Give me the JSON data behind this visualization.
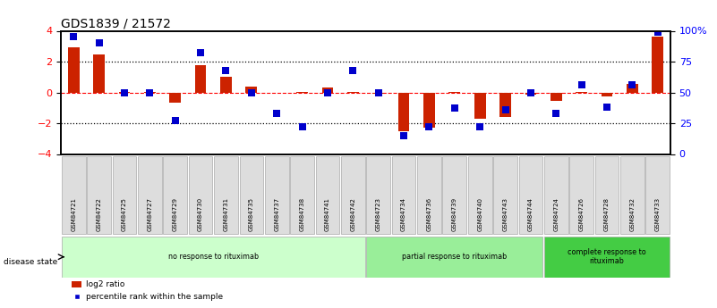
{
  "title": "GDS1839 / 21572",
  "samples": [
    "GSM84721",
    "GSM84722",
    "GSM84725",
    "GSM84727",
    "GSM84729",
    "GSM84730",
    "GSM84731",
    "GSM84735",
    "GSM84737",
    "GSM84738",
    "GSM84741",
    "GSM84742",
    "GSM84723",
    "GSM84734",
    "GSM84736",
    "GSM84739",
    "GSM84740",
    "GSM84743",
    "GSM84744",
    "GSM84724",
    "GSM84726",
    "GSM84728",
    "GSM84732",
    "GSM84733"
  ],
  "log2_ratio": [
    2.9,
    2.45,
    0.05,
    0.02,
    -0.65,
    1.75,
    1.0,
    0.4,
    -0.05,
    0.02,
    0.3,
    0.02,
    -0.1,
    -2.5,
    -2.3,
    0.02,
    -1.7,
    -1.6,
    -0.15,
    -0.55,
    0.02,
    -0.25,
    0.55,
    3.6
  ],
  "percentile_raw": [
    95,
    90,
    50,
    50,
    27,
    82,
    68,
    50,
    33,
    22,
    50,
    68,
    50,
    15,
    22,
    37,
    22,
    36,
    50,
    33,
    56,
    38,
    56,
    99
  ],
  "groups": [
    {
      "label": "no response to rituximab",
      "start": 0,
      "end": 12,
      "color": "#ccffcc"
    },
    {
      "label": "partial response to rituximab",
      "start": 12,
      "end": 19,
      "color": "#99ee99"
    },
    {
      "label": "complete response to\nrituximab",
      "start": 19,
      "end": 24,
      "color": "#44cc44"
    }
  ],
  "bar_color": "#cc2200",
  "dot_color": "#0000cc",
  "background": "#ffffff",
  "label_bg": "#dddddd",
  "legend": [
    "log2 ratio",
    "percentile rank within the sample"
  ]
}
